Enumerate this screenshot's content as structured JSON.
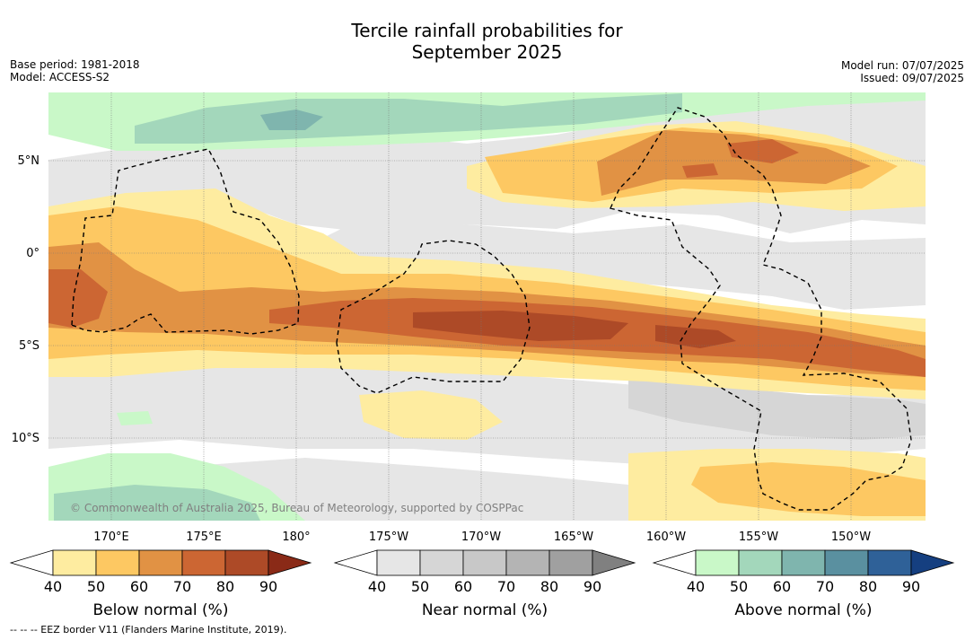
{
  "title_line1": "Tercile rainfall probabilities for",
  "title_line2": "September 2025",
  "base_period": "Base period: 1981-2018",
  "model": "Model: ACCESS-S2",
  "model_run": "Model run: 07/07/2025",
  "issued": "Issued: 09/07/2025",
  "copyright": "© Commonwealth of Australia 2025, Bureau of Meteorology, supported by COSPPac",
  "footnote": "-- -- -- EEZ border V11 (Flanders Marine Institute, 2019).",
  "lon_labels": [
    "170°E",
    "175°E",
    "180°",
    "175°W",
    "170°W",
    "165°W",
    "160°W",
    "155°W",
    "150°W"
  ],
  "lat_labels": [
    "5°N",
    "0°",
    "5°S",
    "10°S"
  ],
  "colorbars": [
    {
      "title": "Below normal (%)",
      "ticks": [
        "40",
        "50",
        "60",
        "70",
        "80",
        "90"
      ],
      "colors": [
        "#ffffff",
        "#feeca0",
        "#fdc862",
        "#e19244",
        "#cc6633",
        "#ad4a27",
        "#8a2a17"
      ]
    },
    {
      "title": "Near normal (%)",
      "ticks": [
        "40",
        "50",
        "60",
        "70",
        "80",
        "90"
      ],
      "colors": [
        "#ffffff",
        "#e6e6e6",
        "#d6d6d6",
        "#c8c8c8",
        "#b4b4b4",
        "#a0a0a0",
        "#808080"
      ]
    },
    {
      "title": "Above normal (%)",
      "ticks": [
        "40",
        "50",
        "60",
        "70",
        "80",
        "90"
      ],
      "colors": [
        "#ffffff",
        "#c9f8c8",
        "#a3d7bb",
        "#7fb5ae",
        "#5a90a0",
        "#2f6198",
        "#153f80"
      ]
    }
  ]
}
